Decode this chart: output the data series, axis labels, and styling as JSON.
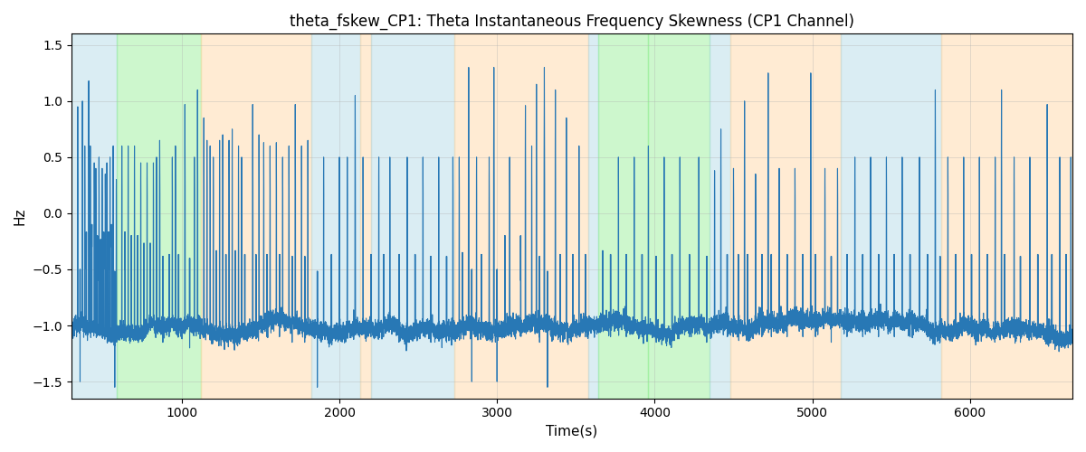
{
  "title": "theta_fskew_CP1: Theta Instantaneous Frequency Skewness (CP1 Channel)",
  "xlabel": "Time(s)",
  "ylabel": "Hz",
  "ylim": [
    -1.65,
    1.6
  ],
  "yticks": [
    -1.5,
    -1.0,
    -0.5,
    0.0,
    0.5,
    1.0,
    1.5
  ],
  "xlim": [
    300,
    6650
  ],
  "line_color": "#2878b5",
  "line_width": 0.8,
  "bg_regions": [
    {
      "xmin": 300,
      "xmax": 590,
      "color": "#add8e6",
      "alpha": 0.45
    },
    {
      "xmin": 590,
      "xmax": 1120,
      "color": "#90ee90",
      "alpha": 0.45
    },
    {
      "xmin": 1120,
      "xmax": 1820,
      "color": "#ffd8a8",
      "alpha": 0.5
    },
    {
      "xmin": 1820,
      "xmax": 2130,
      "color": "#add8e6",
      "alpha": 0.45
    },
    {
      "xmin": 2130,
      "xmax": 2200,
      "color": "#ffd8a8",
      "alpha": 0.5
    },
    {
      "xmin": 2200,
      "xmax": 2730,
      "color": "#add8e6",
      "alpha": 0.45
    },
    {
      "xmin": 2730,
      "xmax": 3580,
      "color": "#ffd8a8",
      "alpha": 0.5
    },
    {
      "xmin": 3580,
      "xmax": 3640,
      "color": "#add8e6",
      "alpha": 0.45
    },
    {
      "xmin": 3640,
      "xmax": 3960,
      "color": "#90ee90",
      "alpha": 0.45
    },
    {
      "xmin": 3960,
      "xmax": 4350,
      "color": "#90ee90",
      "alpha": 0.45
    },
    {
      "xmin": 4350,
      "xmax": 4480,
      "color": "#add8e6",
      "alpha": 0.45
    },
    {
      "xmin": 4480,
      "xmax": 5180,
      "color": "#ffd8a8",
      "alpha": 0.5
    },
    {
      "xmin": 5180,
      "xmax": 5820,
      "color": "#add8e6",
      "alpha": 0.45
    },
    {
      "xmin": 5820,
      "xmax": 6650,
      "color": "#ffd8a8",
      "alpha": 0.5
    }
  ],
  "grid_color": "#b0b0b0",
  "grid_alpha": 0.5,
  "fig_width": 12.0,
  "fig_height": 5.0,
  "dpi": 100
}
